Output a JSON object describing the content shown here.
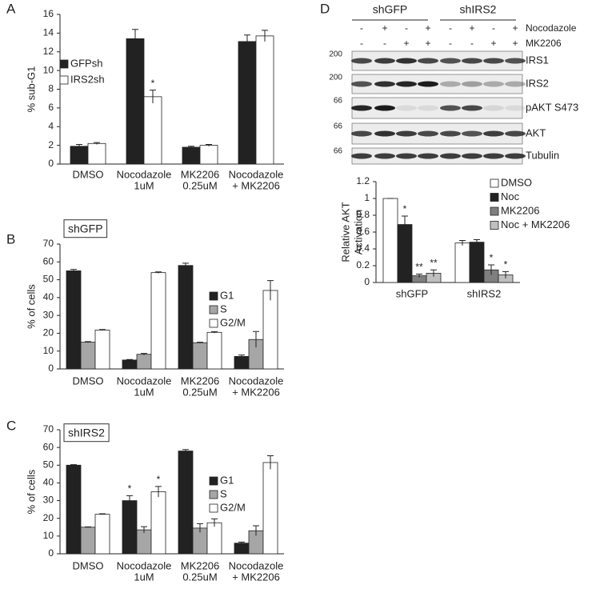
{
  "panels": [
    "A",
    "B",
    "C",
    "D"
  ],
  "chart_data": [
    {
      "type": "bar",
      "ylabel": "% sub-G1",
      "categories": [
        "DMSO",
        [
          "Nocodazole",
          "1uM"
        ],
        [
          "MK2206",
          "0.25uM"
        ],
        [
          "Nocodazole",
          "+ MK2206"
        ]
      ],
      "series": [
        {
          "name": "GFPsh",
          "color": "#222222",
          "values": [
            1.9,
            13.4,
            1.8,
            13.1
          ],
          "errors": [
            0.2,
            1.0,
            0.1,
            0.7
          ],
          "marks": [
            null,
            null,
            null,
            null
          ]
        },
        {
          "name": "IRS2sh",
          "color": "#ffffff",
          "values": [
            2.2,
            7.2,
            2.0,
            13.7
          ],
          "errors": [
            0.1,
            0.7,
            0.1,
            0.6
          ],
          "marks": [
            null,
            "*",
            null,
            null
          ]
        }
      ],
      "ylim": [
        0,
        16
      ],
      "yticks": [
        0,
        2,
        4,
        6,
        8,
        10,
        12,
        14,
        16
      ]
    },
    {
      "type": "bar",
      "title": "shGFP",
      "ylabel": "% of cells",
      "categories": [
        "DMSO",
        [
          "Nocodazole",
          "1uM"
        ],
        [
          "MK2206",
          "0.25uM"
        ],
        [
          "Nocodazole",
          "+ MK2206"
        ]
      ],
      "series": [
        {
          "name": "G1",
          "color": "#222222",
          "values": [
            55,
            5,
            58,
            7
          ],
          "errors": [
            0.8,
            0.3,
            1.3,
            0.8
          ],
          "marks": [
            null,
            null,
            null,
            null
          ]
        },
        {
          "name": "S",
          "color": "#a6a6a6",
          "values": [
            15,
            8.2,
            14.7,
            16.5
          ],
          "errors": [
            0.3,
            0.5,
            0.3,
            4.5
          ],
          "marks": [
            null,
            null,
            null,
            null
          ]
        },
        {
          "name": "G2/M",
          "color": "#ffffff",
          "values": [
            21.8,
            54,
            20.5,
            44
          ],
          "errors": [
            0.3,
            0.4,
            0.4,
            5.5
          ],
          "marks": [
            null,
            null,
            null,
            null
          ]
        }
      ],
      "ylim": [
        0,
        70
      ],
      "yticks": [
        0,
        10,
        20,
        30,
        40,
        50,
        60,
        70
      ]
    },
    {
      "type": "bar",
      "title": "shIRS2",
      "ylabel": "% of cells",
      "categories": [
        "DMSO",
        [
          "Nocodazole",
          "1uM"
        ],
        [
          "MK2206",
          "0.25uM"
        ],
        [
          "Nocodazole",
          "+ MK2206"
        ]
      ],
      "series": [
        {
          "name": "G1",
          "color": "#222222",
          "values": [
            50,
            30,
            58,
            6
          ],
          "errors": [
            0.3,
            2.8,
            0.8,
            0.6
          ],
          "marks": [
            null,
            "*",
            null,
            null
          ]
        },
        {
          "name": "S",
          "color": "#a6a6a6",
          "values": [
            15,
            13.5,
            14.5,
            13
          ],
          "errors": [
            0.2,
            1.8,
            2.5,
            2.8
          ],
          "marks": [
            null,
            null,
            null,
            null
          ]
        },
        {
          "name": "G2/M",
          "color": "#ffffff",
          "values": [
            22.3,
            35,
            17.5,
            51.5
          ],
          "errors": [
            0.3,
            3,
            2.2,
            3.8
          ],
          "marks": [
            null,
            "*",
            null,
            null
          ]
        }
      ],
      "ylim": [
        0,
        70
      ],
      "yticks": [
        0,
        10,
        20,
        30,
        40,
        50,
        60,
        70
      ]
    },
    {
      "type": "bar",
      "ylabel": [
        "Relative AKT",
        "Activation"
      ],
      "categories": [
        "shGFP",
        "shIRS2"
      ],
      "series": [
        {
          "name": "DMSO",
          "color": "#ffffff",
          "values": [
            1.0,
            0.47
          ],
          "errors": [
            0,
            0.03
          ],
          "marks": [
            null,
            null
          ]
        },
        {
          "name": "Noc",
          "color": "#222222",
          "values": [
            0.69,
            0.48
          ],
          "errors": [
            0.1,
            0.03
          ],
          "marks": [
            "*",
            null
          ]
        },
        {
          "name": "MK2206",
          "color": "#7f7f7f",
          "values": [
            0.08,
            0.15
          ],
          "errors": [
            0.02,
            0.06
          ],
          "marks": [
            "**",
            "*"
          ]
        },
        {
          "name": "Noc + MK2206",
          "color": "#bfbfbf",
          "values": [
            0.11,
            0.09
          ],
          "errors": [
            0.04,
            0.04
          ],
          "marks": [
            "**",
            "*"
          ]
        }
      ],
      "ylim": [
        0,
        1.2
      ],
      "yticks": [
        0,
        0.2,
        0.4,
        0.6,
        0.8,
        1,
        1.2
      ]
    }
  ],
  "blot": {
    "groups": [
      "shGFP",
      "shIRS2"
    ],
    "treatments": [
      {
        "name": "Nocodazole",
        "signs": [
          "-",
          "+",
          "-",
          "+",
          "-",
          "+",
          "-",
          "+"
        ]
      },
      {
        "name": "MK2206",
        "signs": [
          "-",
          "-",
          "+",
          "+",
          "-",
          "-",
          "+",
          "+"
        ]
      }
    ],
    "rows": [
      {
        "label": "IRS1",
        "mw": "200"
      },
      {
        "label": "IRS2",
        "mw": "200"
      },
      {
        "label": "pAKT S473",
        "mw": "66"
      },
      {
        "label": "AKT",
        "mw": "66"
      },
      {
        "label": "Tubulin",
        "mw": "66"
      }
    ]
  }
}
